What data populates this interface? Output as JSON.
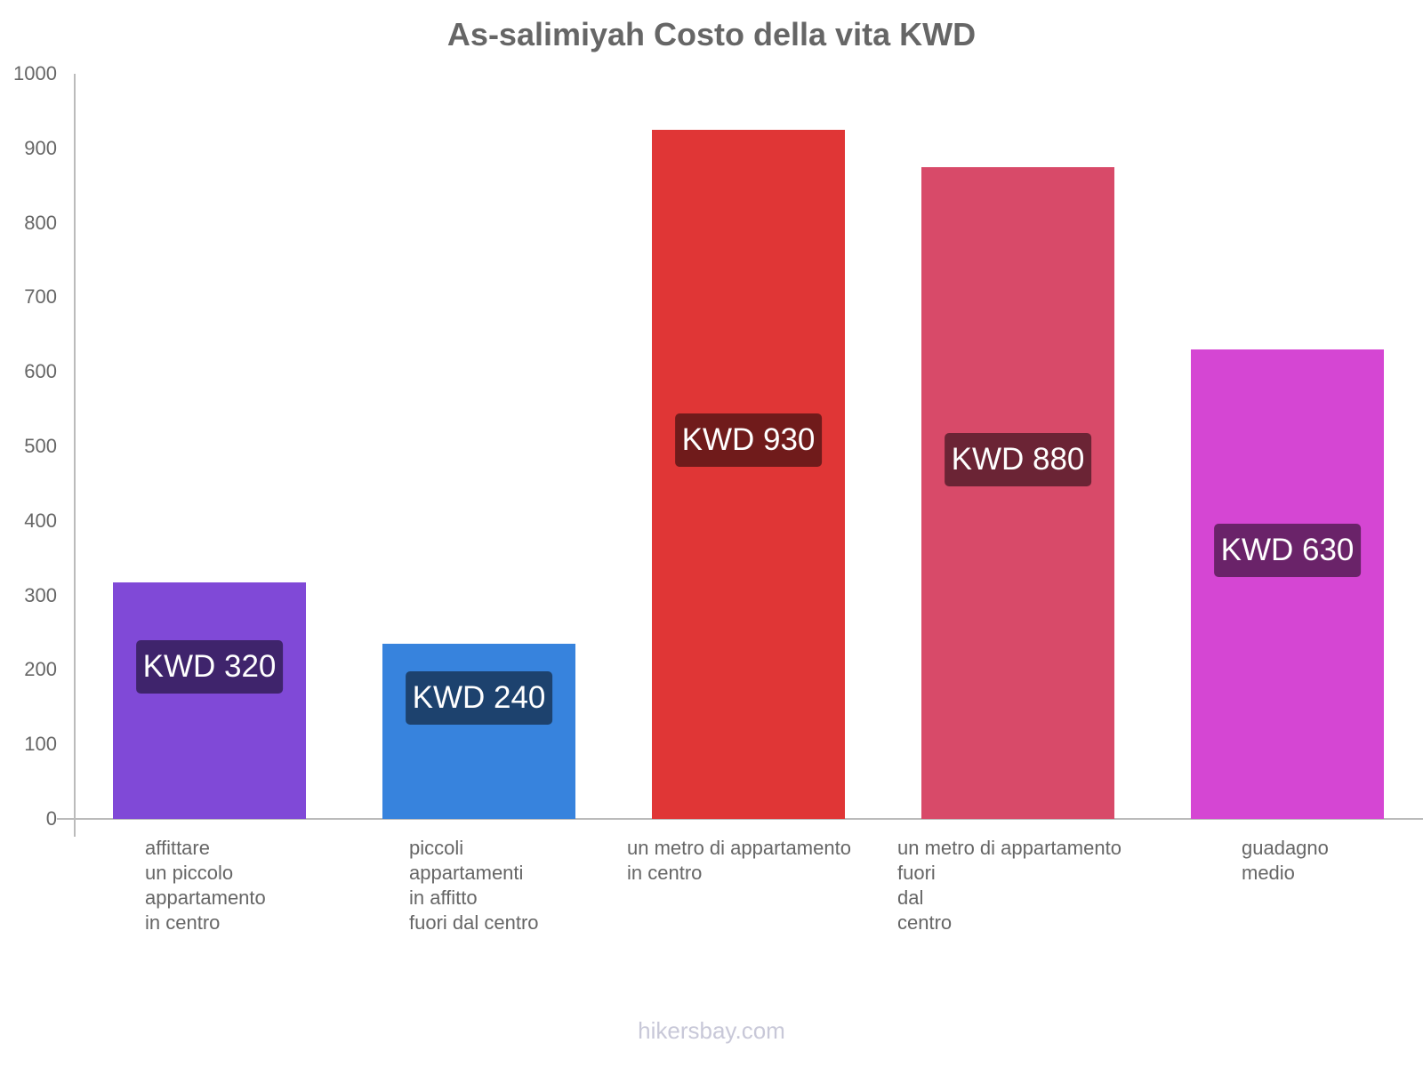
{
  "chart_data": {
    "type": "bar",
    "title": "As-salimiyah Costo della vita KWD",
    "xlabel": "",
    "ylabel": "",
    "ylim": [
      0,
      1000
    ],
    "yticks": [
      "0",
      "100",
      "200",
      "300",
      "400",
      "500",
      "600",
      "700",
      "800",
      "900",
      "1000"
    ],
    "grid": false,
    "legend": null,
    "categories": [
      "affittare\nun piccolo\nappartamento\nin centro",
      "piccoli\nappartamenti\nin affitto\nfuori dal centro",
      "un metro di appartamento\nin centro",
      "un metro di appartamento\nfuori\ndal\ncentro",
      "guadagno\nmedio"
    ],
    "values": [
      320,
      240,
      930,
      880,
      630
    ],
    "bar_heights_read": [
      318,
      235,
      925,
      875,
      630
    ],
    "value_labels": [
      "KWD 320",
      "KWD 240",
      "KWD 930",
      "KWD 880",
      "KWD 630"
    ],
    "colors": [
      "#8049d7",
      "#3783dd",
      "#e03636",
      "#d84a69",
      "#d546d3"
    ],
    "label_colors": [
      "#3f246c",
      "#1d426e",
      "#701b1b",
      "#6b2435",
      "#6a2369"
    ]
  },
  "footer": "hikersbay.com"
}
